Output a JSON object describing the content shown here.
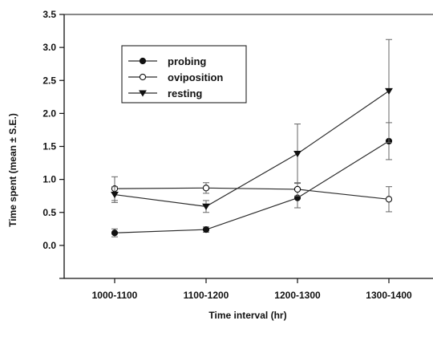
{
  "chart_data": {
    "type": "line",
    "title": "",
    "xlabel": "Time interval (hr)",
    "ylabel": "Time spent (mean ± S.E.)",
    "categories": [
      "1000-1100",
      "1100-1200",
      "1200-1300",
      "1300-1400"
    ],
    "ylim": [
      -0.5,
      3.5
    ],
    "yticks": [
      "0.0",
      "0.5",
      "1.0",
      "1.5",
      "2.0",
      "2.5",
      "3.0",
      "3.5"
    ],
    "grid": false,
    "legend_position": "top-left",
    "series": [
      {
        "name": "probing",
        "marker": "filled-circle",
        "values": [
          0.19,
          0.24,
          0.72,
          1.58
        ],
        "errors": [
          0.06,
          0.04,
          0.15,
          0.28
        ]
      },
      {
        "name": "oviposition",
        "marker": "open-circle",
        "values": [
          0.86,
          0.87,
          0.85,
          0.7
        ],
        "errors": [
          0.18,
          0.08,
          0.1,
          0.19
        ]
      },
      {
        "name": "resting",
        "marker": "filled-triangle-down",
        "values": [
          0.77,
          0.59,
          1.39,
          2.34
        ],
        "errors": [
          0.12,
          0.09,
          0.45,
          0.78
        ]
      }
    ],
    "colors": {
      "line": "#2b2b2b",
      "axis": "#111111"
    }
  }
}
